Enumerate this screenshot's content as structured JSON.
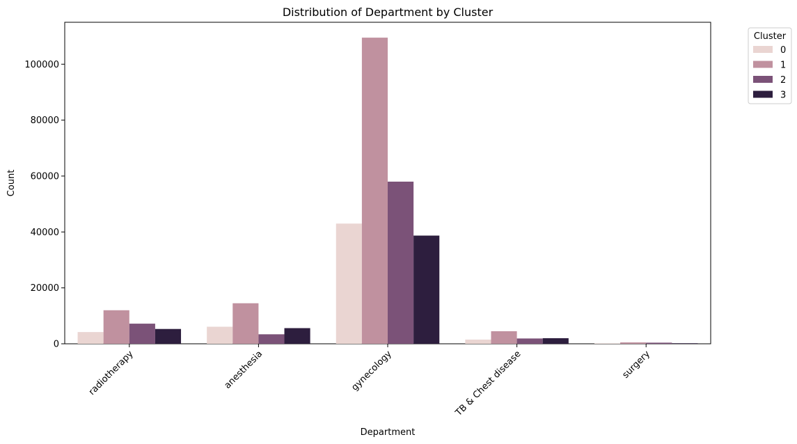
{
  "chart_data": {
    "type": "bar",
    "title": "Distribution of Department by Cluster",
    "xlabel": "Department",
    "ylabel": "Count",
    "categories": [
      "radiotherapy",
      "anesthesia",
      "gynecology",
      "TB & Chest disease",
      "surgery"
    ],
    "ylim": [
      0,
      115000
    ],
    "yticks": [
      0,
      20000,
      40000,
      60000,
      80000,
      100000
    ],
    "legend": {
      "title": "Cluster",
      "placement": "outside-top-right"
    },
    "series": [
      {
        "name": "0",
        "color": "#ead5d2",
        "values": [
          4200,
          6100,
          43000,
          1500,
          150
        ]
      },
      {
        "name": "1",
        "color": "#c0919f",
        "values": [
          12000,
          14500,
          109500,
          4500,
          500
        ]
      },
      {
        "name": "2",
        "color": "#7b5278",
        "values": [
          7200,
          3400,
          58000,
          1900,
          400
        ]
      },
      {
        "name": "3",
        "color": "#2d1e3e",
        "values": [
          5300,
          5600,
          38700,
          2000,
          200
        ]
      }
    ]
  }
}
